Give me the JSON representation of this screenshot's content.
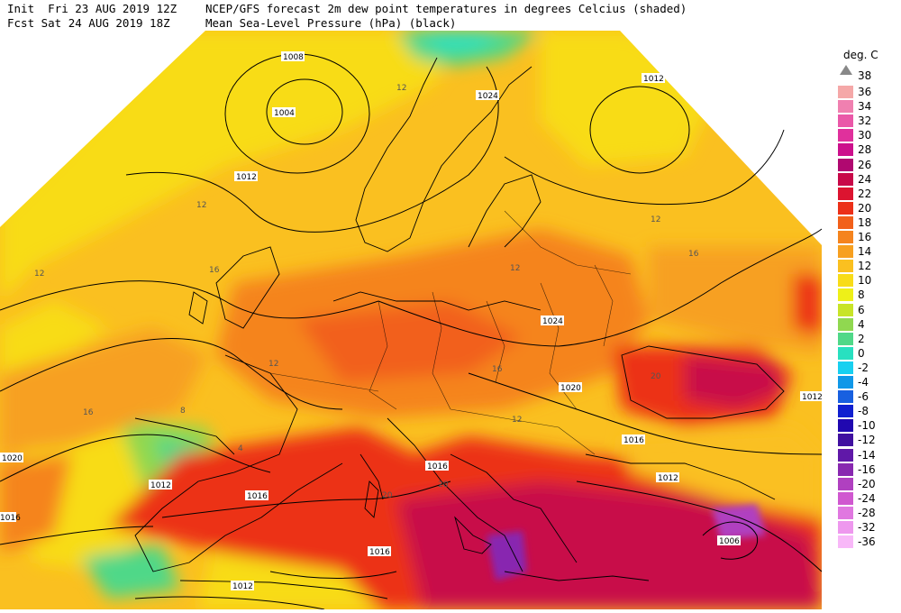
{
  "header": {
    "line1_left": "Init  Fri 23 AUG 2019 12Z",
    "line2_left": "Fcst Sat 24 AUG 2019 18Z",
    "line1_right": "NCEP/GFS forecast 2m dew point temperatures in degrees Celcius (shaded)",
    "line2_right": "Mean Sea-Level Pressure (hPa) (black)"
  },
  "legend": {
    "title": "deg. C",
    "top_value": "38",
    "entries": [
      {
        "label": "36",
        "color": "#f5a8a8"
      },
      {
        "label": "34",
        "color": "#f080b0"
      },
      {
        "label": "32",
        "color": "#ea58a8"
      },
      {
        "label": "30",
        "color": "#e0309c"
      },
      {
        "label": "28",
        "color": "#cc108c"
      },
      {
        "label": "26",
        "color": "#b00870"
      },
      {
        "label": "24",
        "color": "#c80848"
      },
      {
        "label": "22",
        "color": "#dc1430"
      },
      {
        "label": "20",
        "color": "#ec3018"
      },
      {
        "label": "18",
        "color": "#f2601a"
      },
      {
        "label": "16",
        "color": "#f5841e"
      },
      {
        "label": "14",
        "color": "#f7a020"
      },
      {
        "label": "12",
        "color": "#fac020"
      },
      {
        "label": "10",
        "color": "#f8dc18"
      },
      {
        "label": "8",
        "color": "#eef018"
      },
      {
        "label": "6",
        "color": "#c8e428"
      },
      {
        "label": "4",
        "color": "#90d850"
      },
      {
        "label": "2",
        "color": "#50d888"
      },
      {
        "label": "0",
        "color": "#28e0c0"
      },
      {
        "label": "-2",
        "color": "#18d0f0"
      },
      {
        "label": "-4",
        "color": "#1098e8"
      },
      {
        "label": "-6",
        "color": "#1860e0"
      },
      {
        "label": "-8",
        "color": "#1020d0"
      },
      {
        "label": "-10",
        "color": "#2008b0"
      },
      {
        "label": "-12",
        "color": "#4010a0"
      },
      {
        "label": "-14",
        "color": "#6018a8"
      },
      {
        "label": "-16",
        "color": "#8828b0"
      },
      {
        "label": "-20",
        "color": "#b040c0"
      },
      {
        "label": "-24",
        "color": "#d058d0"
      },
      {
        "label": "-28",
        "color": "#e078e0"
      },
      {
        "label": "-32",
        "color": "#ee98ee"
      },
      {
        "label": "-36",
        "color": "#f8b8f8"
      }
    ]
  },
  "map": {
    "isobar_labels": [
      "1008",
      "1004",
      "1024",
      "1012",
      "1012",
      "1024",
      "1020",
      "1016",
      "1016",
      "1012",
      "1020",
      "1012",
      "1016",
      "1016",
      "1012",
      "1006",
      "1012",
      "1016"
    ],
    "dewpoint_labels": [
      "12",
      "12",
      "12",
      "12",
      "16",
      "16",
      "12",
      "16",
      "12",
      "16",
      "20",
      "20",
      "20",
      "12",
      "8",
      "4"
    ]
  }
}
